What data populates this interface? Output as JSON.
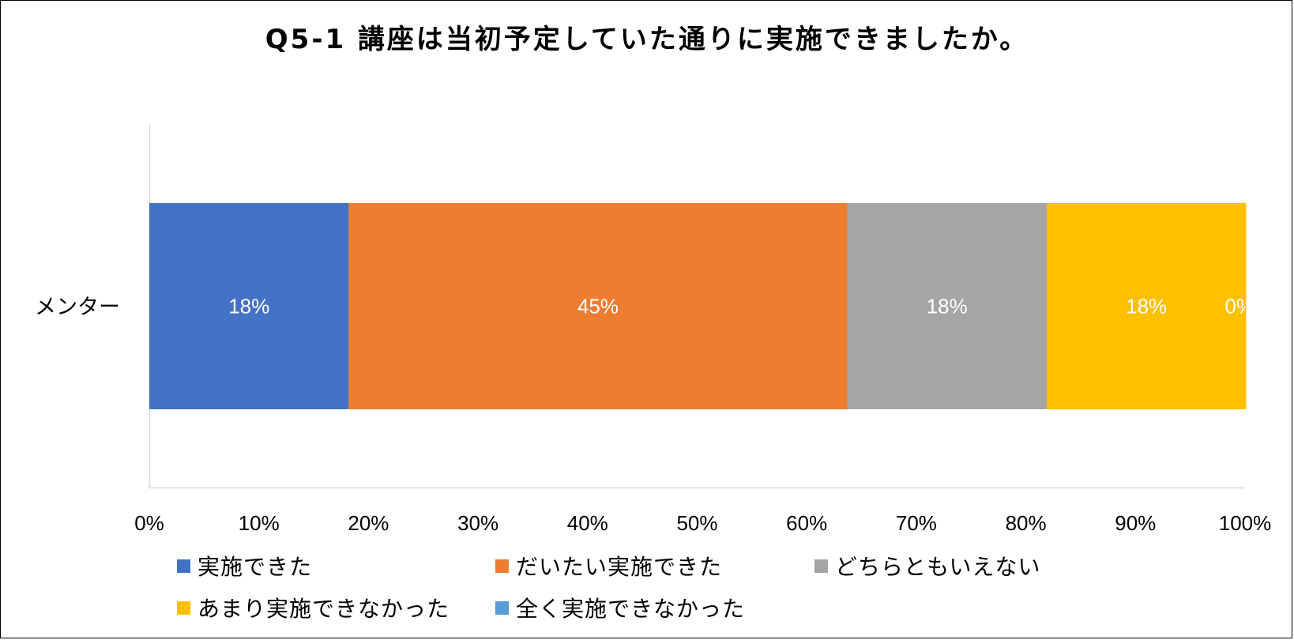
{
  "chart_data": {
    "type": "bar",
    "orientation": "horizontal",
    "stacked": "percent",
    "title": "Q5-1 講座は当初予定していた通りに実施できましたか。",
    "categories": [
      "メンター"
    ],
    "series": [
      {
        "name": "実施できた",
        "values": [
          18.2
        ],
        "label": "18%",
        "color": "#4472C4"
      },
      {
        "name": "だいたい実施できた",
        "values": [
          45.5
        ],
        "label": "45%",
        "color": "#ED7D31"
      },
      {
        "name": "どちらともいえない",
        "values": [
          18.2
        ],
        "label": "18%",
        "color": "#A5A5A5"
      },
      {
        "name": "あまり実施できなかった",
        "values": [
          18.2
        ],
        "label": "18%",
        "color": "#FFC000"
      },
      {
        "name": "全く実施できなかった",
        "values": [
          0
        ],
        "label": "0%",
        "color": "#5B9BD5"
      }
    ],
    "xlim": [
      0,
      100
    ],
    "x_ticks": [
      "0%",
      "10%",
      "20%",
      "30%",
      "40%",
      "50%",
      "60%",
      "70%",
      "80%",
      "90%",
      "100%"
    ],
    "grid": false,
    "legend_position": "bottom"
  }
}
